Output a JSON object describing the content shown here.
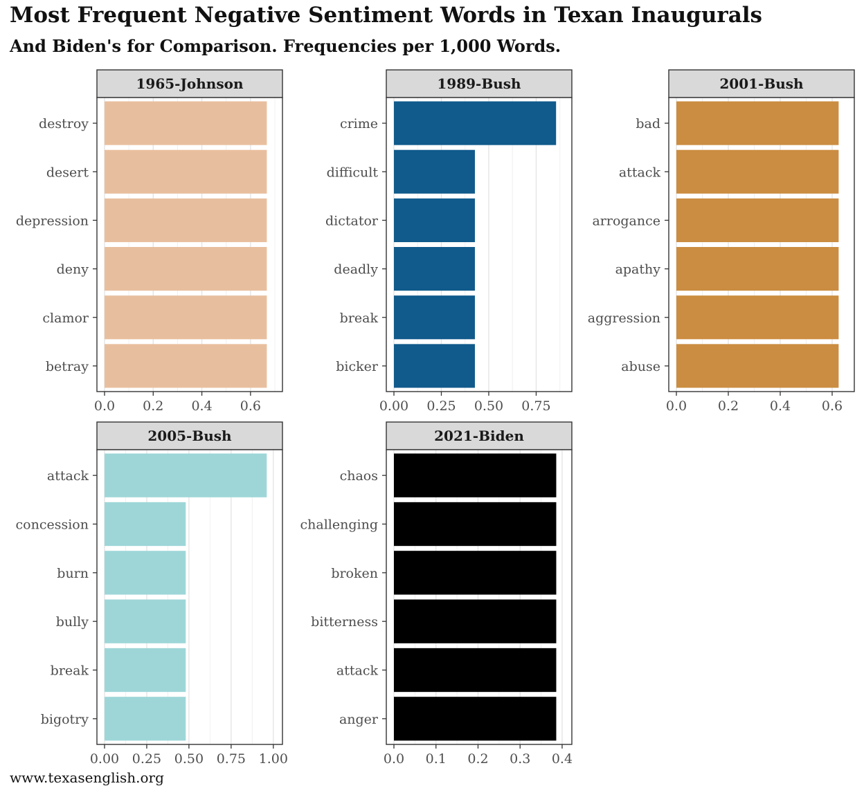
{
  "title": "Most Frequent Negative Sentiment Words in Texan Inaugurals",
  "subtitle": "And Biden's for Comparison. Frequencies per 1,000 Words.",
  "caption": "www.texasenglish.org",
  "chart_data": [
    {
      "type": "bar",
      "panel": "1965-Johnson",
      "orientation": "horizontal",
      "color": "#E8BF9E",
      "categories": [
        "destroy",
        "desert",
        "depression",
        "deny",
        "clamor",
        "betray"
      ],
      "values": [
        0.667,
        0.667,
        0.667,
        0.667,
        0.667,
        0.667
      ],
      "xlim": [
        0,
        0.7
      ],
      "xticks": [
        0.0,
        0.2,
        0.4,
        0.6
      ],
      "xtick_labels": [
        "0.0",
        "0.2",
        "0.4",
        "0.6"
      ]
    },
    {
      "type": "bar",
      "panel": "1989-Bush",
      "orientation": "horizontal",
      "color": "#105A8C",
      "categories": [
        "crime",
        "difficult",
        "dictator",
        "deadly",
        "break",
        "bicker"
      ],
      "values": [
        0.855,
        0.427,
        0.427,
        0.427,
        0.427,
        0.427
      ],
      "xlim": [
        0,
        0.898
      ],
      "xticks": [
        0.0,
        0.25,
        0.5,
        0.75
      ],
      "xtick_labels": [
        "0.00",
        "0.25",
        "0.50",
        "0.75"
      ]
    },
    {
      "type": "bar",
      "panel": "2001-Bush",
      "orientation": "horizontal",
      "color": "#CB8D41",
      "categories": [
        "bad",
        "attack",
        "arrogance",
        "apathy",
        "aggression",
        "abuse"
      ],
      "values": [
        0.625,
        0.625,
        0.625,
        0.625,
        0.625,
        0.625
      ],
      "xlim": [
        0,
        0.656
      ],
      "xticks": [
        0.0,
        0.2,
        0.4,
        0.6
      ],
      "xtick_labels": [
        "0.0",
        "0.2",
        "0.4",
        "0.6"
      ]
    },
    {
      "type": "bar",
      "panel": "2005-Bush",
      "orientation": "horizontal",
      "color": "#9ED6D8",
      "categories": [
        "attack",
        "concession",
        "burn",
        "bully",
        "break",
        "bigotry"
      ],
      "values": [
        0.961,
        0.481,
        0.481,
        0.481,
        0.481,
        0.481
      ],
      "xlim": [
        0,
        1.009
      ],
      "xticks": [
        0.0,
        0.25,
        0.5,
        0.75,
        1.0
      ],
      "xtick_labels": [
        "0.00",
        "0.25",
        "0.50",
        "0.75",
        "1.00"
      ]
    },
    {
      "type": "bar",
      "panel": "2021-Biden",
      "orientation": "horizontal",
      "color": "#000000",
      "categories": [
        "chaos",
        "challenging",
        "broken",
        "bitterness",
        "attack",
        "anger"
      ],
      "values": [
        0.386,
        0.386,
        0.386,
        0.386,
        0.386,
        0.386
      ],
      "xlim": [
        0,
        0.405
      ],
      "xticks": [
        0.0,
        0.1,
        0.2,
        0.3,
        0.4
      ],
      "xtick_labels": [
        "0.0",
        "0.1",
        "0.2",
        "0.3",
        "0.4"
      ]
    }
  ]
}
